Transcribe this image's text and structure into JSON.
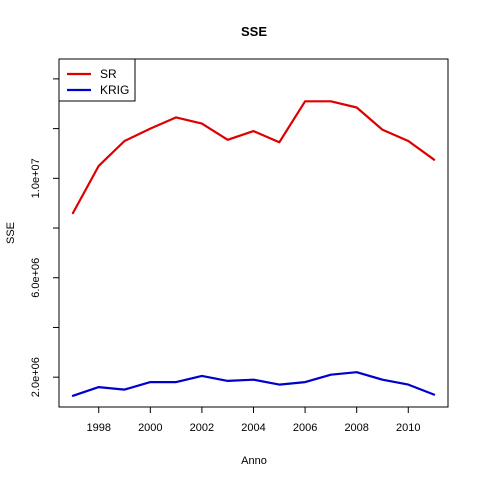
{
  "chart_data": {
    "type": "line",
    "title": "SSE",
    "xlabel": "Anno",
    "ylabel": "SSE",
    "x": [
      1997,
      1998,
      1999,
      2000,
      2001,
      2002,
      2003,
      2004,
      2005,
      2006,
      2007,
      2008,
      2009,
      2010,
      2011
    ],
    "xlim": [
      1996.46,
      2011.54
    ],
    "ylim": [
      800000,
      14800000
    ],
    "x_ticks": [
      1998,
      2000,
      2002,
      2004,
      2006,
      2008,
      2010
    ],
    "x_tick_labels": [
      "1998",
      "2000",
      "2002",
      "2004",
      "2006",
      "2008",
      "2010"
    ],
    "y_ticks": [
      2000000,
      4000000,
      6000000,
      8000000,
      10000000,
      12000000,
      14000000
    ],
    "y_tick_labels": [
      "2.0e+06",
      "",
      "6.0e+06",
      "",
      "1.0e+07",
      "",
      ""
    ],
    "legend_position": "top-left",
    "grid": false,
    "series": [
      {
        "name": "SR",
        "color": "#dd0000",
        "values": [
          8600000,
          10500000,
          11500000,
          12000000,
          12450000,
          12200000,
          11550000,
          11900000,
          11450000,
          13100000,
          13100000,
          12850000,
          11950000,
          11500000,
          10750000
        ]
      },
      {
        "name": "KRIG",
        "color": "#0000cc",
        "values": [
          1250000,
          1600000,
          1500000,
          1800000,
          1800000,
          2050000,
          1850000,
          1900000,
          1700000,
          1800000,
          2100000,
          2200000,
          1900000,
          1700000,
          1300000
        ]
      }
    ]
  }
}
